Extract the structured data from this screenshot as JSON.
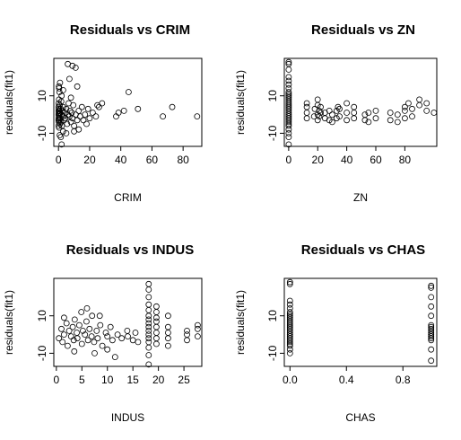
{
  "chart_data": [
    {
      "type": "scatter",
      "title": "Residuals vs CRIM",
      "xlabel": "CRIM",
      "ylabel": "residuals(fit1)",
      "xlim": [
        -3,
        92
      ],
      "ylim": [
        -17,
        30
      ],
      "xticks": [
        0,
        20,
        40,
        60,
        80
      ],
      "yticks": [
        -10,
        10
      ],
      "points": [
        [
          0.02,
          -3
        ],
        [
          0.03,
          2
        ],
        [
          0.05,
          -6
        ],
        [
          0.06,
          4
        ],
        [
          0.08,
          0
        ],
        [
          0.1,
          -2
        ],
        [
          0.12,
          6
        ],
        [
          0.15,
          1
        ],
        [
          0.2,
          -4
        ],
        [
          0.25,
          3
        ],
        [
          0.3,
          -1
        ],
        [
          0.35,
          8
        ],
        [
          0.4,
          -7
        ],
        [
          0.5,
          2
        ],
        [
          0.6,
          0
        ],
        [
          0.7,
          -3
        ],
        [
          0.8,
          5
        ],
        [
          0.9,
          -5
        ],
        [
          1.0,
          1
        ],
        [
          1.2,
          -2
        ],
        [
          1.4,
          3
        ],
        [
          1.6,
          -4
        ],
        [
          1.8,
          7
        ],
        [
          2.0,
          0
        ],
        [
          2.2,
          -6
        ],
        [
          2.5,
          2
        ],
        [
          2.8,
          -1
        ],
        [
          3.0,
          4
        ],
        [
          3.5,
          -3
        ],
        [
          4.0,
          1
        ],
        [
          4.5,
          -2
        ],
        [
          5.0,
          3
        ],
        [
          5.5,
          -5
        ],
        [
          6.0,
          0
        ],
        [
          6.5,
          6
        ],
        [
          7.0,
          -1
        ],
        [
          7.5,
          2
        ],
        [
          8.0,
          -4
        ],
        [
          8.5,
          1
        ],
        [
          9.0,
          -2
        ],
        [
          9.5,
          5
        ],
        [
          10.0,
          -6
        ],
        [
          11.0,
          0
        ],
        [
          12.0,
          -3
        ],
        [
          13.0,
          2
        ],
        [
          14.0,
          -1
        ],
        [
          15.0,
          4
        ],
        [
          16.0,
          -3
        ],
        [
          17.0,
          0
        ],
        [
          18.0,
          -5
        ],
        [
          19.0,
          3
        ],
        [
          20.0,
          -2
        ],
        [
          22.0,
          1
        ],
        [
          24.0,
          -1
        ],
        [
          26.0,
          4
        ],
        [
          0.4,
          14
        ],
        [
          0.6,
          12
        ],
        [
          1.0,
          17
        ],
        [
          0.3,
          15
        ],
        [
          2.0,
          10
        ],
        [
          3.0,
          13
        ],
        [
          0.8,
          -11
        ],
        [
          1.5,
          -12
        ],
        [
          3.0,
          -9
        ],
        [
          5.0,
          -10
        ],
        [
          6.0,
          27
        ],
        [
          9.0,
          26
        ],
        [
          11.0,
          25
        ],
        [
          7.0,
          19
        ],
        [
          12.0,
          15
        ],
        [
          8.0,
          9
        ],
        [
          2.0,
          -16
        ],
        [
          10.0,
          -9
        ],
        [
          13.0,
          -8
        ],
        [
          25.0,
          5
        ],
        [
          28.0,
          6
        ],
        [
          37.0,
          -1
        ],
        [
          38.5,
          1
        ],
        [
          42.0,
          2
        ],
        [
          45.0,
          12
        ],
        [
          51.0,
          3
        ],
        [
          67.0,
          -1
        ],
        [
          73.0,
          4
        ],
        [
          89.0,
          -1
        ]
      ]
    },
    {
      "type": "scatter",
      "title": "Residuals vs ZN",
      "xlabel": "ZN",
      "ylabel": "residuals(fit1)",
      "xlim": [
        -3,
        102
      ],
      "ylim": [
        -17,
        30
      ],
      "xticks": [
        0,
        20,
        40,
        60,
        80
      ],
      "yticks": [
        -10,
        10
      ],
      "points": [
        [
          0,
          -16
        ],
        [
          0,
          -12
        ],
        [
          0,
          -10
        ],
        [
          0,
          -8
        ],
        [
          0,
          -6
        ],
        [
          0,
          -5
        ],
        [
          0,
          -4
        ],
        [
          0,
          -3
        ],
        [
          0,
          -2
        ],
        [
          0,
          -1
        ],
        [
          0,
          0
        ],
        [
          0,
          1
        ],
        [
          0,
          2
        ],
        [
          0,
          3
        ],
        [
          0,
          4
        ],
        [
          0,
          5
        ],
        [
          0,
          6
        ],
        [
          0,
          7
        ],
        [
          0,
          8
        ],
        [
          0,
          9
        ],
        [
          0,
          10
        ],
        [
          0,
          11
        ],
        [
          0,
          12
        ],
        [
          0,
          14
        ],
        [
          0,
          16
        ],
        [
          0,
          18
        ],
        [
          0,
          20
        ],
        [
          0,
          24
        ],
        [
          0,
          27
        ],
        [
          0,
          28
        ],
        [
          12.5,
          1
        ],
        [
          12.5,
          -2
        ],
        [
          12.5,
          4
        ],
        [
          12.5,
          6
        ],
        [
          17.5,
          -1
        ],
        [
          18,
          3
        ],
        [
          20,
          0
        ],
        [
          20,
          -3
        ],
        [
          20,
          5
        ],
        [
          20,
          8
        ],
        [
          21,
          2
        ],
        [
          21,
          -1
        ],
        [
          22,
          1
        ],
        [
          22,
          4
        ],
        [
          25,
          -2
        ],
        [
          25,
          1
        ],
        [
          28,
          -3
        ],
        [
          28,
          2
        ],
        [
          30,
          -4
        ],
        [
          30,
          0
        ],
        [
          33,
          2
        ],
        [
          33,
          -2
        ],
        [
          34,
          4
        ],
        [
          35,
          -1
        ],
        [
          35,
          3
        ],
        [
          40,
          1
        ],
        [
          40,
          -3
        ],
        [
          40,
          6
        ],
        [
          45,
          -2
        ],
        [
          45,
          1
        ],
        [
          45,
          4
        ],
        [
          52.5,
          0
        ],
        [
          52.5,
          -3
        ],
        [
          55,
          -4
        ],
        [
          55,
          1
        ],
        [
          60,
          -2
        ],
        [
          60,
          2
        ],
        [
          70,
          -3
        ],
        [
          70,
          1
        ],
        [
          75,
          -4
        ],
        [
          75,
          0
        ],
        [
          80,
          -2
        ],
        [
          80,
          2
        ],
        [
          80,
          4
        ],
        [
          82.5,
          6
        ],
        [
          85,
          -1
        ],
        [
          85,
          3
        ],
        [
          90,
          5
        ],
        [
          90,
          8
        ],
        [
          95,
          6
        ],
        [
          95,
          2
        ],
        [
          100,
          1
        ]
      ]
    },
    {
      "type": "scatter",
      "title": "Residuals vs INDUS",
      "xlabel": "INDUS",
      "ylabel": "residuals(fit1)",
      "xlim": [
        -0.5,
        28.5
      ],
      "ylim": [
        -17,
        30
      ],
      "xticks": [
        0,
        5,
        10,
        15,
        20,
        25
      ],
      "yticks": [
        -10,
        10
      ],
      "points": [
        [
          0.5,
          -2
        ],
        [
          1.0,
          3
        ],
        [
          1.2,
          -4
        ],
        [
          1.5,
          0
        ],
        [
          2.0,
          6
        ],
        [
          2.2,
          -6
        ],
        [
          2.5,
          2
        ],
        [
          2.9,
          -1
        ],
        [
          3.2,
          4
        ],
        [
          3.4,
          -3
        ],
        [
          3.6,
          8
        ],
        [
          4.0,
          1
        ],
        [
          4.1,
          -2
        ],
        [
          4.5,
          5
        ],
        [
          5.0,
          -5
        ],
        [
          5.2,
          2
        ],
        [
          5.6,
          0
        ],
        [
          5.9,
          7
        ],
        [
          6.2,
          -3
        ],
        [
          6.5,
          3
        ],
        [
          6.9,
          -1
        ],
        [
          7.0,
          10
        ],
        [
          7.4,
          -4
        ],
        [
          7.9,
          2
        ],
        [
          8.1,
          -2
        ],
        [
          8.6,
          5
        ],
        [
          9.0,
          -6
        ],
        [
          9.7,
          1
        ],
        [
          10.0,
          -1
        ],
        [
          10.6,
          4
        ],
        [
          11.0,
          -3
        ],
        [
          12.0,
          0
        ],
        [
          12.8,
          -2
        ],
        [
          13.9,
          2
        ],
        [
          14.0,
          -1
        ],
        [
          15.0,
          -3
        ],
        [
          15.5,
          1
        ],
        [
          16.0,
          -4
        ],
        [
          1.5,
          9
        ],
        [
          4.9,
          12
        ],
        [
          6.0,
          14
        ],
        [
          8.5,
          10
        ],
        [
          3.5,
          -9
        ],
        [
          7.5,
          -10
        ],
        [
          10.0,
          -8
        ],
        [
          11.5,
          -12
        ],
        [
          18.1,
          -16
        ],
        [
          18.1,
          -11
        ],
        [
          18.1,
          -7
        ],
        [
          18.1,
          -4
        ],
        [
          18.1,
          -2
        ],
        [
          18.1,
          0
        ],
        [
          18.1,
          2
        ],
        [
          18.1,
          4
        ],
        [
          18.1,
          6
        ],
        [
          18.1,
          8
        ],
        [
          18.1,
          10
        ],
        [
          18.1,
          13
        ],
        [
          18.1,
          16
        ],
        [
          18.1,
          20
        ],
        [
          18.1,
          24
        ],
        [
          18.1,
          27
        ],
        [
          19.6,
          -5
        ],
        [
          19.6,
          -2
        ],
        [
          19.6,
          1
        ],
        [
          19.6,
          4
        ],
        [
          19.6,
          7
        ],
        [
          19.6,
          9
        ],
        [
          19.6,
          12
        ],
        [
          19.6,
          15
        ],
        [
          21.9,
          -6
        ],
        [
          21.9,
          -2
        ],
        [
          21.9,
          1
        ],
        [
          21.9,
          4
        ],
        [
          21.9,
          10
        ],
        [
          25.6,
          -3
        ],
        [
          25.6,
          0
        ],
        [
          25.6,
          2
        ],
        [
          27.7,
          -1
        ],
        [
          27.7,
          3
        ],
        [
          27.7,
          5
        ]
      ]
    },
    {
      "type": "scatter",
      "title": "Residuals vs CHAS",
      "xlabel": "CHAS",
      "ylabel": "residuals(fit1)",
      "xlim": [
        -0.04,
        1.04
      ],
      "ylim": [
        -17,
        30
      ],
      "xticks": [
        "0.0",
        "0.4",
        "0.8"
      ],
      "yticks": [
        -10,
        10
      ],
      "points": [
        [
          0,
          -10
        ],
        [
          0,
          -8
        ],
        [
          0,
          -6
        ],
        [
          0,
          -5
        ],
        [
          0,
          -4
        ],
        [
          0,
          -3
        ],
        [
          0,
          -2
        ],
        [
          0,
          -1
        ],
        [
          0,
          0
        ],
        [
          0,
          1
        ],
        [
          0,
          2
        ],
        [
          0,
          3
        ],
        [
          0,
          4
        ],
        [
          0,
          5
        ],
        [
          0,
          6
        ],
        [
          0,
          7
        ],
        [
          0,
          8
        ],
        [
          0,
          9
        ],
        [
          0,
          10
        ],
        [
          0,
          11
        ],
        [
          0,
          12
        ],
        [
          0,
          14
        ],
        [
          0,
          16
        ],
        [
          0,
          18
        ],
        [
          0,
          27
        ],
        [
          0,
          28
        ],
        [
          1,
          -14
        ],
        [
          1,
          -8
        ],
        [
          1,
          -3
        ],
        [
          1,
          -2
        ],
        [
          1,
          -1
        ],
        [
          1,
          0
        ],
        [
          1,
          1
        ],
        [
          1,
          2
        ],
        [
          1,
          3
        ],
        [
          1,
          4
        ],
        [
          1,
          5
        ],
        [
          1,
          10
        ],
        [
          1,
          15
        ],
        [
          1,
          20
        ],
        [
          1,
          25
        ],
        [
          1,
          26
        ]
      ]
    }
  ]
}
